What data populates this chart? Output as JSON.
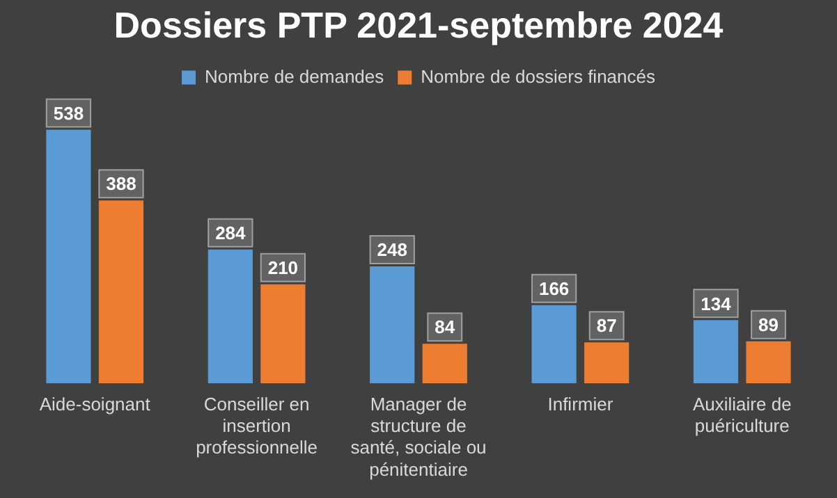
{
  "chart_data": {
    "type": "bar",
    "title": "Dossiers PTP 2021-septembre 2024",
    "categories": [
      "Aide-soignant",
      "Conseiller en insertion professionnelle",
      "Manager de structure de santé, sociale ou pénitentiaire",
      "Infirmier",
      "Auxiliaire de puériculture"
    ],
    "series": [
      {
        "name": "Nombre de demandes",
        "color": "#5b9bd5",
        "values": [
          538,
          284,
          248,
          166,
          134
        ]
      },
      {
        "name": "Nombre de dossiers financés",
        "color": "#ed7d31",
        "values": [
          388,
          210,
          84,
          87,
          89
        ]
      }
    ],
    "data_labels": true,
    "legend": "top",
    "grid": false
  }
}
